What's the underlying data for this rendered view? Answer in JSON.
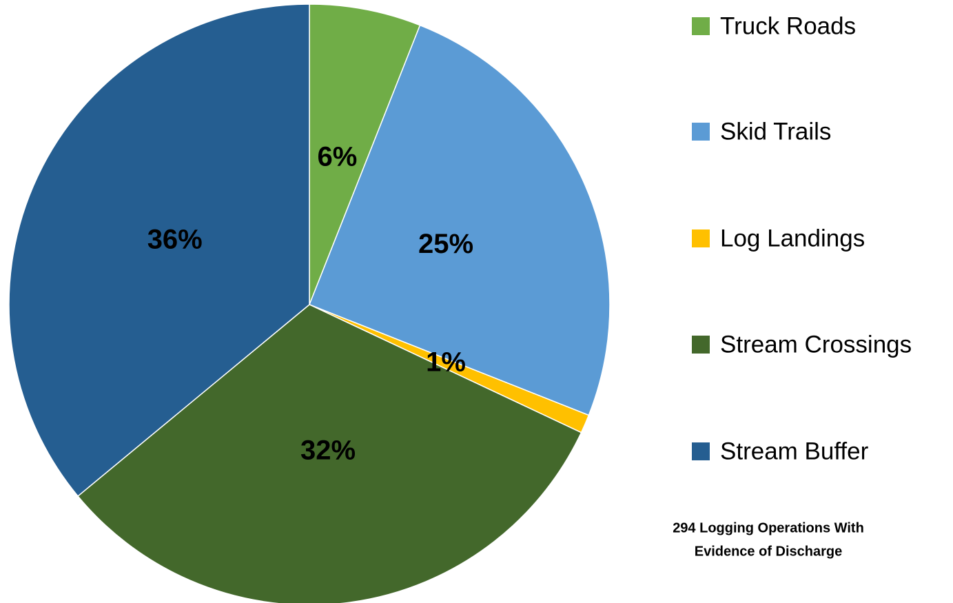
{
  "chart_data": {
    "type": "pie",
    "categories": [
      "Truck Roads",
      "Skid Trails",
      "Log Landings",
      "Stream Crossings",
      "Stream Buffer"
    ],
    "values": [
      6,
      25,
      1,
      32,
      36
    ],
    "value_labels": [
      "6%",
      "25%",
      "1%",
      "32%",
      "36%"
    ],
    "colors": [
      "#70ad47",
      "#5b9bd5",
      "#ffc000",
      "#43682b",
      "#255e91"
    ],
    "legend": "right",
    "annotation": [
      "294 Logging Operations With",
      "Evidence of Discharge"
    ]
  }
}
